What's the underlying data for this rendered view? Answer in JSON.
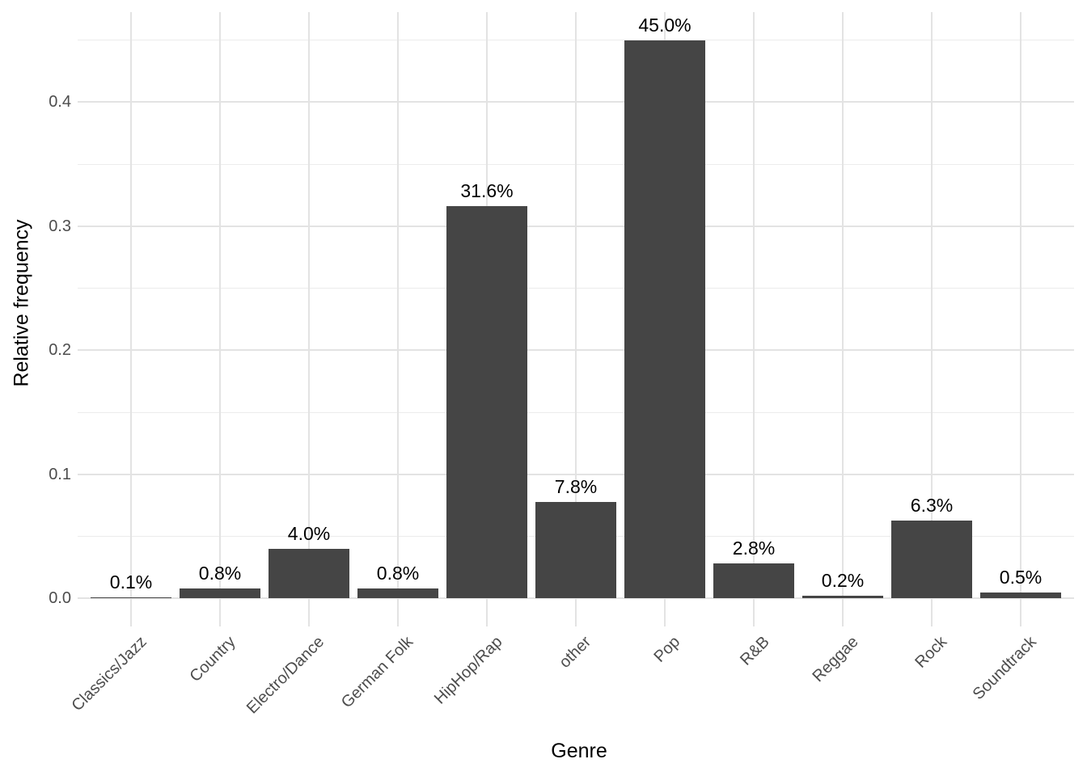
{
  "chart_data": {
    "type": "bar",
    "title": "",
    "xlabel": "Genre",
    "ylabel": "Relative frequency",
    "categories": [
      "Classics/Jazz",
      "Country",
      "Electro/Dance",
      "German Folk",
      "HipHop/Rap",
      "other",
      "Pop",
      "R&B",
      "Reggae",
      "Rock",
      "Soundtrack"
    ],
    "values": [
      0.001,
      0.008,
      0.04,
      0.008,
      0.316,
      0.078,
      0.45,
      0.028,
      0.002,
      0.063,
      0.005
    ],
    "bar_value_labels": [
      "0.1%",
      "0.8%",
      "4.0%",
      "0.8%",
      "31.6%",
      "7.8%",
      "45.0%",
      "2.8%",
      "0.2%",
      "6.3%",
      "0.5%"
    ],
    "y_tick_values": [
      0.0,
      0.1,
      0.2,
      0.3,
      0.4
    ],
    "y_tick_labels": [
      "0.0",
      "0.1",
      "0.2",
      "0.3",
      "0.4"
    ],
    "y_minor_tick_values": [
      0.05,
      0.15,
      0.25,
      0.35,
      0.45
    ],
    "ylim": [
      -0.0225,
      0.4725
    ],
    "grid": "major and minor horizontal, major vertical at category centers",
    "legend_position": "none",
    "colors": {
      "bar_fill": "#454545",
      "grid_major": "#E3E3E3",
      "grid_minor": "#ECECEC",
      "tick_label": "#4D4D4D",
      "axis_title": "#000000",
      "value_label": "#000000",
      "background": "#FFFFFF"
    }
  }
}
